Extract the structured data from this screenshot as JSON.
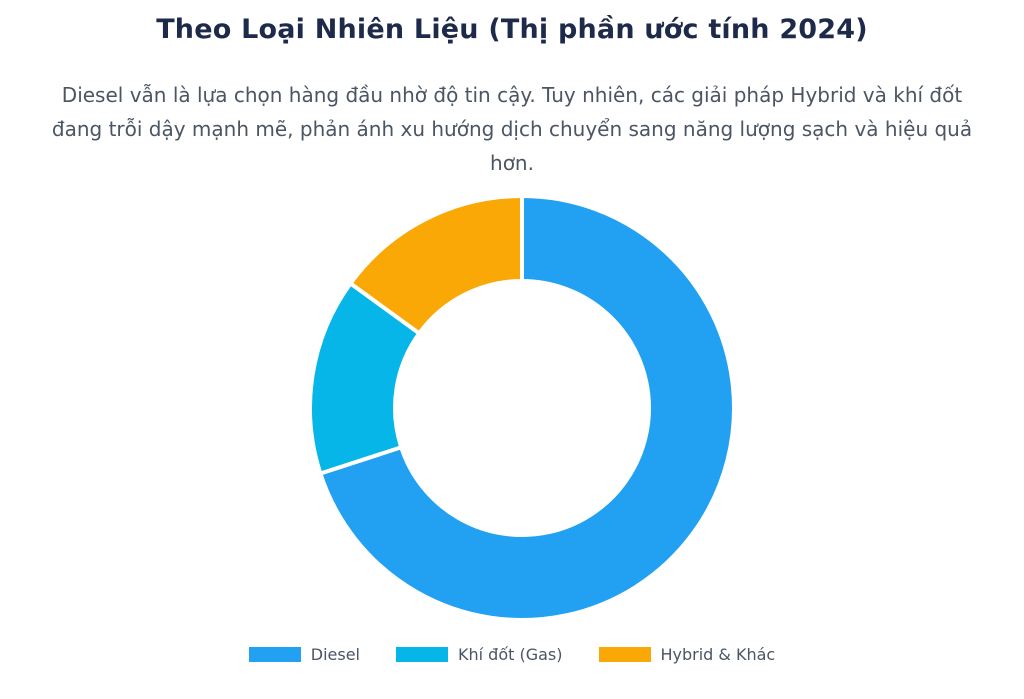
{
  "title": "Theo Loại Nhiên Liệu (Thị phần ước tính 2024)",
  "subtitle": "Diesel vẫn là lựa chọn hàng đầu nhờ độ tin cậy. Tuy nhiên, các giải pháp Hybrid và khí đốt đang trỗi dậy mạnh mẽ, phản ánh xu hướng dịch chuyển sang năng lượng sạch và hiệu quả hơn.",
  "chart_data": {
    "type": "pie",
    "variant": "donut",
    "categories": [
      "Diesel",
      "Khí đốt (Gas)",
      "Hybrid & Khác"
    ],
    "values": [
      70,
      15,
      15
    ],
    "colors": [
      "#22a1f2",
      "#06b6e8",
      "#f9a806"
    ],
    "legend_position": "bottom"
  }
}
